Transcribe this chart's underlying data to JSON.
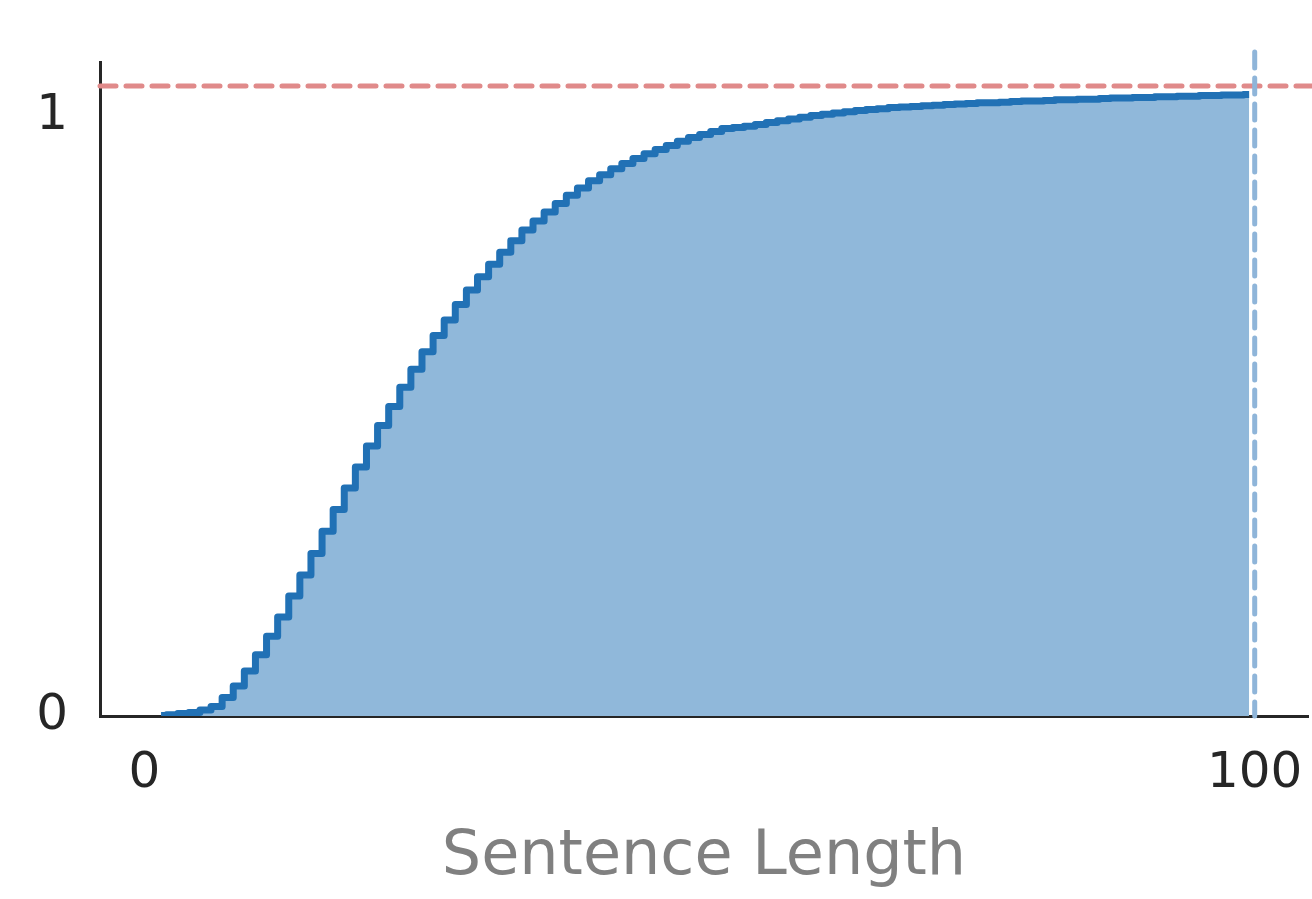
{
  "chart_data": {
    "type": "step",
    "xlabel": "Sentence Length",
    "x": [
      1.5,
      2.5,
      3.5,
      4.5,
      5.5,
      6.5,
      7.5,
      8.5,
      9.5,
      10.5,
      11.5,
      12.5,
      13.5,
      14.5,
      15.5,
      16.5,
      17.5,
      18.5,
      19.5,
      20.5,
      21.5,
      22.5,
      23.5,
      24.5,
      25.5,
      26.5,
      27.5,
      28.5,
      29.5,
      30.5,
      31.5,
      32.5,
      33.5,
      34.5,
      35.5,
      36.5,
      37.5,
      38.5,
      39.5,
      40.5,
      41.5,
      42.5,
      43.5,
      44.5,
      45.5,
      46.5,
      47.5,
      48.5,
      49.5,
      50.5,
      51.5,
      52.5,
      53.5,
      54.5,
      55.5,
      56.5,
      57.5,
      58.5,
      59.5,
      60.5,
      61.5,
      62.5,
      63.5,
      64.5,
      65.5,
      66.5,
      67.5,
      68.5,
      69.5,
      70.5,
      71.5,
      72.5,
      73.5,
      74.5,
      75.5,
      76.5,
      77.5,
      78.5,
      79.5,
      80.5,
      81.5,
      82.5,
      83.5,
      84.5,
      85.5,
      86.5,
      87.5,
      88.5,
      89.5,
      90.5,
      91.5,
      92.5,
      93.5,
      94.5,
      95.5,
      96.5,
      97.5,
      98.5,
      99.5
    ],
    "values": [
      0.001,
      0.002,
      0.004,
      0.006,
      0.01,
      0.016,
      0.031,
      0.05,
      0.075,
      0.102,
      0.133,
      0.165,
      0.2,
      0.235,
      0.271,
      0.308,
      0.344,
      0.38,
      0.415,
      0.45,
      0.484,
      0.516,
      0.548,
      0.578,
      0.607,
      0.634,
      0.66,
      0.686,
      0.71,
      0.732,
      0.753,
      0.773,
      0.792,
      0.81,
      0.825,
      0.84,
      0.854,
      0.868,
      0.88,
      0.892,
      0.902,
      0.912,
      0.921,
      0.929,
      0.937,
      0.944,
      0.951,
      0.958,
      0.964,
      0.969,
      0.974,
      0.979,
      0.981,
      0.983,
      0.986,
      0.989,
      0.992,
      0.995,
      0.998,
      1.001,
      1.003,
      1.005,
      1.007,
      1.009,
      1.011,
      1.012,
      1.014,
      1.015,
      1.016,
      1.017,
      1.018,
      1.019,
      1.02,
      1.021,
      1.022,
      1.022,
      1.023,
      1.024,
      1.025,
      1.025,
      1.026,
      1.027,
      1.027,
      1.028,
      1.028,
      1.029,
      1.03,
      1.03,
      1.031,
      1.031,
      1.032,
      1.032,
      1.033,
      1.033,
      1.034,
      1.034,
      1.035,
      1.035,
      1.036
    ],
    "color": "#2171b5",
    "xlim": [
      -4,
      104.8
    ],
    "ylim": [
      0,
      1.09
    ],
    "xticks": [
      0,
      100
    ],
    "yticks": [
      0,
      1
    ],
    "grid": false,
    "legend": false,
    "ref_lines": [
      {
        "axis": "y",
        "value": 1.05,
        "color": "#e08a8a",
        "line_style": "dashed"
      },
      {
        "axis": "x",
        "value": 100,
        "color": "#8fb5d9",
        "line_style": "dashed"
      }
    ]
  }
}
